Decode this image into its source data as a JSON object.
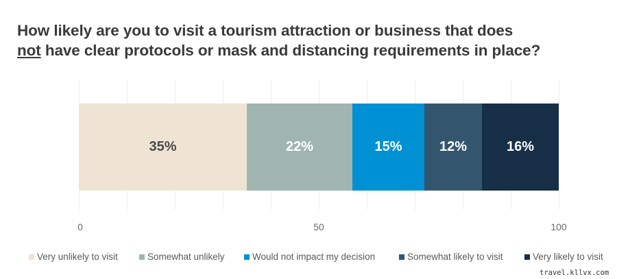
{
  "title": {
    "line1": "How likely are you to visit a tourism attraction or business that does",
    "line2_underlined": "not",
    "line2_rest": " have clear protocols or mask and distancing requirements in place?"
  },
  "chart_data": {
    "type": "bar",
    "orientation": "horizontal-stacked-100",
    "title": "How likely are you to visit a tourism attraction or business that does not have clear protocols or mask and distancing requirements in place?",
    "categories": [
      ""
    ],
    "series": [
      {
        "name": "Very unlikely to visit",
        "values": [
          35
        ],
        "label": "35%",
        "color": "#efe3d3",
        "label_color": "#4a4a4a"
      },
      {
        "name": "Somewhat unlikely",
        "values": [
          22
        ],
        "label": "22%",
        "color": "#a0b5b0",
        "label_color": "#ffffff"
      },
      {
        "name": "Would not impact my decision",
        "values": [
          15
        ],
        "label": "15%",
        "color": "#0090d4",
        "label_color": "#ffffff"
      },
      {
        "name": "Somewhat likely to visit",
        "values": [
          12
        ],
        "label": "12%",
        "color": "#33566e",
        "label_color": "#ffffff"
      },
      {
        "name": "Very likely to visit",
        "values": [
          16
        ],
        "label": "16%",
        "color": "#172e47",
        "label_color": "#ffffff"
      }
    ],
    "xlabel": "",
    "ylabel": "",
    "xlim": [
      0,
      100
    ],
    "x_ticks": [
      "0",
      "50",
      "100"
    ],
    "grid": true,
    "grid_step": 10,
    "legend_position": "bottom"
  },
  "watermark": "travel.kllvx.com"
}
